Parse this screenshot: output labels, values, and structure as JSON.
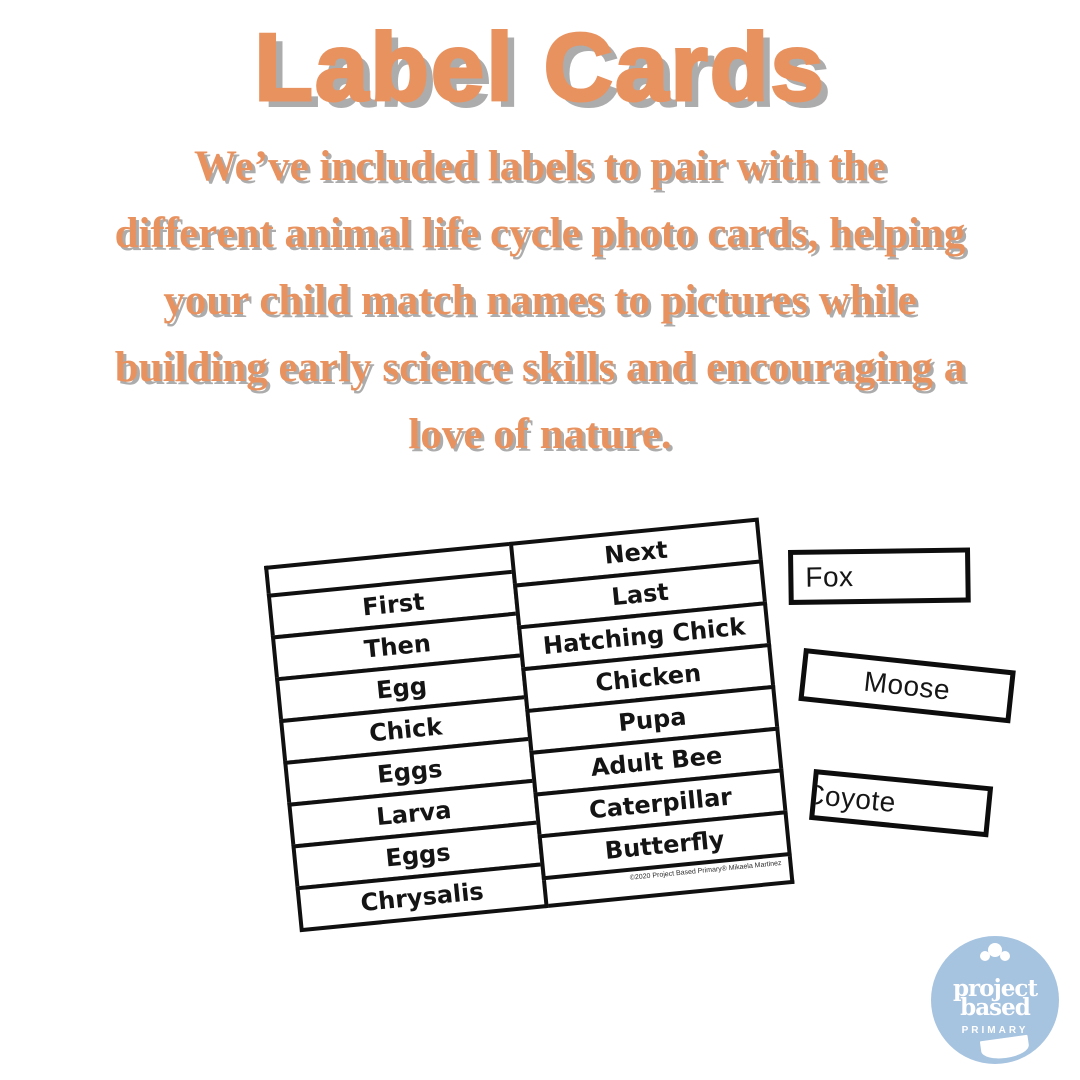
{
  "title": "Label Cards",
  "description": {
    "lines": [
      "We’ve included labels to pair with the",
      "different animal life cycle photo cards, helping",
      "your child match names to pictures while",
      "building early science skills and encouraging a",
      "love of nature."
    ]
  },
  "label_sheet": {
    "left_column": [
      "First",
      "Then",
      "Egg",
      "Chick",
      "Eggs",
      "Larva",
      "Eggs",
      "Chrysalis"
    ],
    "right_column": [
      "Next",
      "Last",
      "Hatching Chick",
      "Chicken",
      "Pupa",
      "Adult Bee",
      "Caterpillar",
      "Butterfly"
    ],
    "copyright": "©2020 Project Based Primary® Mikaela Martinez"
  },
  "loose_cards": [
    {
      "label": "Fox"
    },
    {
      "label": "Moose"
    },
    {
      "label": "Coyote"
    }
  ],
  "logo": {
    "line1": "project",
    "line2": "based",
    "subtitle": "PRIMARY"
  },
  "colors": {
    "accent_orange": "#E8925F",
    "shadow_gray": "#ACACAC",
    "card_border_black": "#101010",
    "logo_blue": "#A6C3E0"
  }
}
